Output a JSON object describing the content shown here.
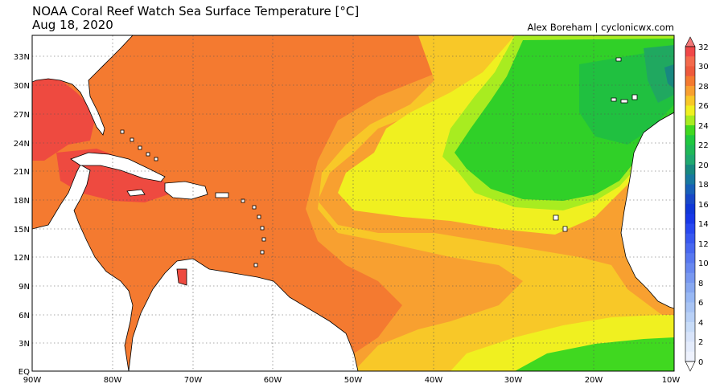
{
  "header": {
    "title": "NOAA Coral Reef Watch Sea Surface Temperature [°C]",
    "date": "Aug 18, 2020",
    "credit": "Alex Boreham | cyclonicwx.com"
  },
  "map": {
    "region": "Tropical Atlantic, Gulf of Mexico and Caribbean",
    "lon_range": [
      -90,
      -10
    ],
    "lat_range": [
      0,
      36
    ],
    "lat_labels": [
      "33N",
      "30N",
      "27N",
      "24N",
      "21N",
      "18N",
      "15N",
      "12N",
      "9N",
      "6N",
      "3N",
      "EQ"
    ],
    "lon_labels": [
      "90W",
      "80W",
      "70W",
      "60W",
      "50W",
      "40W",
      "30W",
      "20W",
      "10W"
    ],
    "gridlines": "dotted"
  },
  "colorbar": {
    "labels": [
      "32",
      "30",
      "28",
      "26",
      "24",
      "22",
      "20",
      "18",
      "16",
      "14",
      "12",
      "10",
      "8",
      "6",
      "4",
      "2",
      "0"
    ],
    "colors": {
      "32": "#f04848",
      "31": "#f46a4c",
      "30": "#ee5a3c",
      "29": "#f47a30",
      "28": "#f8a030",
      "27": "#f8c828",
      "26": "#f0f020",
      "25": "#a8ec20",
      "24": "#40d820",
      "23": "#20c840",
      "22": "#20b858",
      "21": "#20a870",
      "20": "#188880",
      "19": "#1878a0",
      "18": "#1860b8",
      "17": "#1848c8",
      "16": "#1038d8",
      "15": "#1838e8",
      "14": "#2848f0",
      "13": "#3858f0",
      "12": "#4868f0",
      "11": "#5878f0",
      "10": "#6888f0",
      "9": "#7898f0",
      "8": "#88a8f0",
      "7": "#98b8f4",
      "6": "#a8c4f4",
      "5": "#b8d0f6",
      "4": "#c8dcf8",
      "3": "#d8e4fa",
      "2": "#e4ecfc",
      "1": "#eef2fd"
    }
  }
}
